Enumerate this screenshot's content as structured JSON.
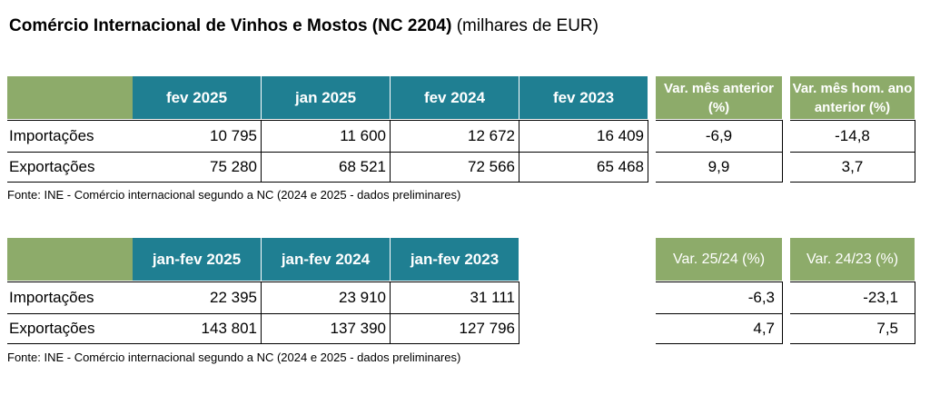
{
  "title": {
    "main": "Comércio Internacional de Vinhos e Mostos (NC 2204)",
    "unit": "(milhares de EUR)"
  },
  "table1": {
    "columns": [
      "fev 2025",
      "jan 2025",
      "fev 2024",
      "fev 2023"
    ],
    "var_headers": [
      "Var. mês anterior (%)",
      "Var. mês hom. ano anterior (%)"
    ],
    "rows": [
      {
        "label": "Importações",
        "values": [
          "10 795",
          "11 600",
          "12 672",
          "16 409"
        ],
        "vars": [
          "-6,9",
          "-14,8"
        ]
      },
      {
        "label": "Exportações",
        "values": [
          "75 280",
          "68 521",
          "72 566",
          "65 468"
        ],
        "vars": [
          "9,9",
          "3,7"
        ]
      }
    ],
    "source": "Fonte: INE - Comércio internacional segundo a NC (2024 e 2025 - dados preliminares)"
  },
  "table2": {
    "columns": [
      "jan-fev 2025",
      "jan-fev 2024",
      "jan-fev 2023"
    ],
    "var_headers": [
      "Var. 25/24 (%)",
      "Var. 24/23 (%)"
    ],
    "rows": [
      {
        "label": "Importações",
        "values": [
          "22 395",
          "23 910",
          "31 111"
        ],
        "vars": [
          "-6,3",
          "-23,1"
        ]
      },
      {
        "label": "Exportações",
        "values": [
          "143 801",
          "137 390",
          "127 796"
        ],
        "vars": [
          "4,7",
          "7,5"
        ]
      }
    ],
    "source": "Fonte: INE - Comércio internacional segundo a NC (2024 e 2025 - dados preliminares)"
  },
  "colors": {
    "green": "#8dab6a",
    "teal": "#1f7f92"
  }
}
